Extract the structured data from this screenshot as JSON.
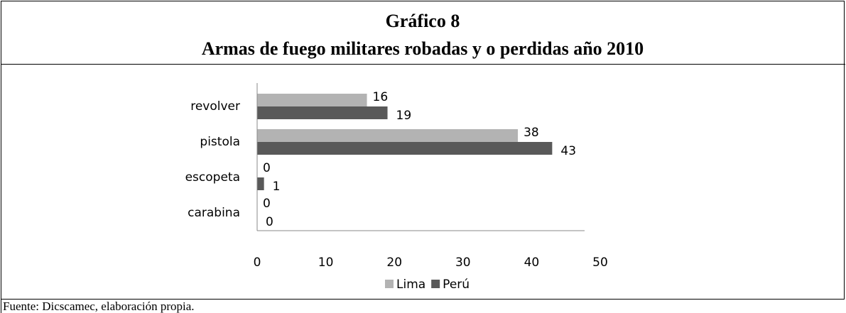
{
  "chart_data": {
    "type": "hbar",
    "title": "Gráfico 8",
    "subtitle": "Armas de fuego militares robadas y o perdidas año 2010",
    "categories": [
      "revolver",
      "pistola",
      "escopeta",
      "carabina"
    ],
    "series": [
      {
        "name": "Lima",
        "color": "#b3b3b3",
        "values": [
          16,
          38,
          0,
          0
        ]
      },
      {
        "name": "Perú",
        "color": "#595959",
        "values": [
          19,
          43,
          1,
          0
        ]
      }
    ],
    "xlim": [
      0,
      50
    ],
    "xticks": [
      0,
      10,
      20,
      30,
      40,
      50
    ],
    "legend": "bottom",
    "source": "Fuente: Dicscamec, elaboración propia."
  }
}
